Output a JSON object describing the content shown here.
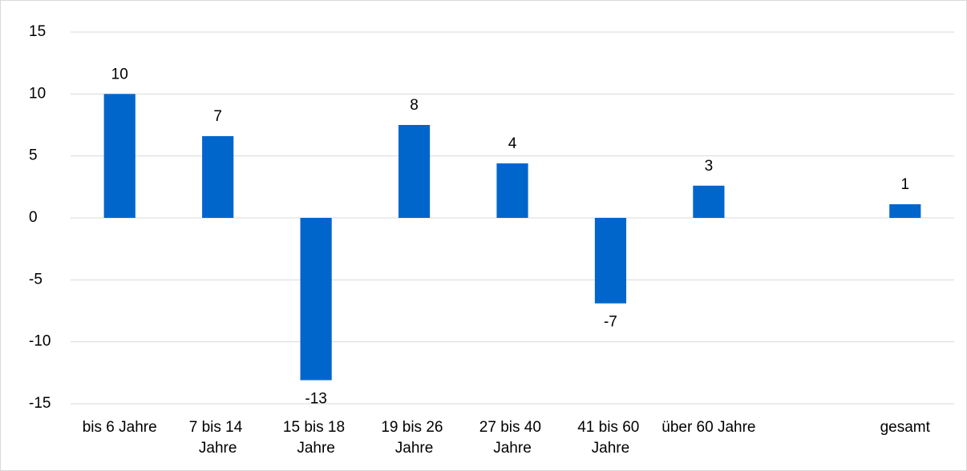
{
  "chart_data": {
    "type": "bar",
    "categories": [
      "bis 6 Jahre",
      "7 bis 14 Jahre",
      "15 bis 18 Jahre",
      "19 bis 26 Jahre",
      "27 bis 40 Jahre",
      "41 bis 60 Jahre",
      "über 60 Jahre",
      null,
      "gesamt"
    ],
    "values": [
      10,
      6.6,
      -13.1,
      7.5,
      4.4,
      -6.9,
      2.6,
      null,
      1.1
    ],
    "value_labels": [
      "10",
      "7",
      "-13",
      "8",
      "4",
      "-7",
      "3",
      null,
      "1"
    ],
    "color": "#0066cc",
    "ylim": [
      -15,
      15
    ],
    "yticks": [
      -15,
      -10,
      -5,
      0,
      5,
      10,
      15
    ],
    "grid": true
  }
}
